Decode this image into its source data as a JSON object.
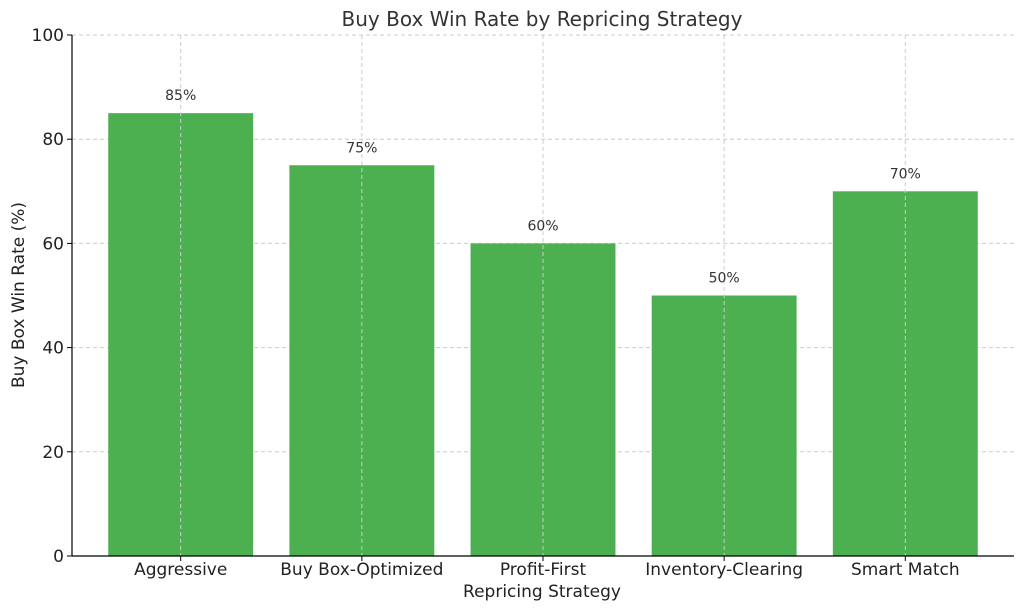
{
  "chart_data": {
    "type": "bar",
    "title": "Buy Box Win Rate by Repricing Strategy",
    "xlabel": "Repricing Strategy",
    "ylabel": "Buy Box Win Rate (%)",
    "categories": [
      "Aggressive",
      "Buy Box-Optimized",
      "Profit-First",
      "Inventory-Clearing",
      "Smart Match"
    ],
    "values": [
      85,
      75,
      60,
      50,
      70
    ],
    "data_labels": [
      "85%",
      "75%",
      "60%",
      "50%",
      "70%"
    ],
    "ylim": [
      0,
      100
    ],
    "yticks": [
      0,
      20,
      40,
      60,
      80,
      100
    ],
    "ytick_labels": [
      "0",
      "20",
      "40",
      "60",
      "80",
      "100"
    ],
    "grid": true,
    "bar_color": "#4caf50"
  }
}
